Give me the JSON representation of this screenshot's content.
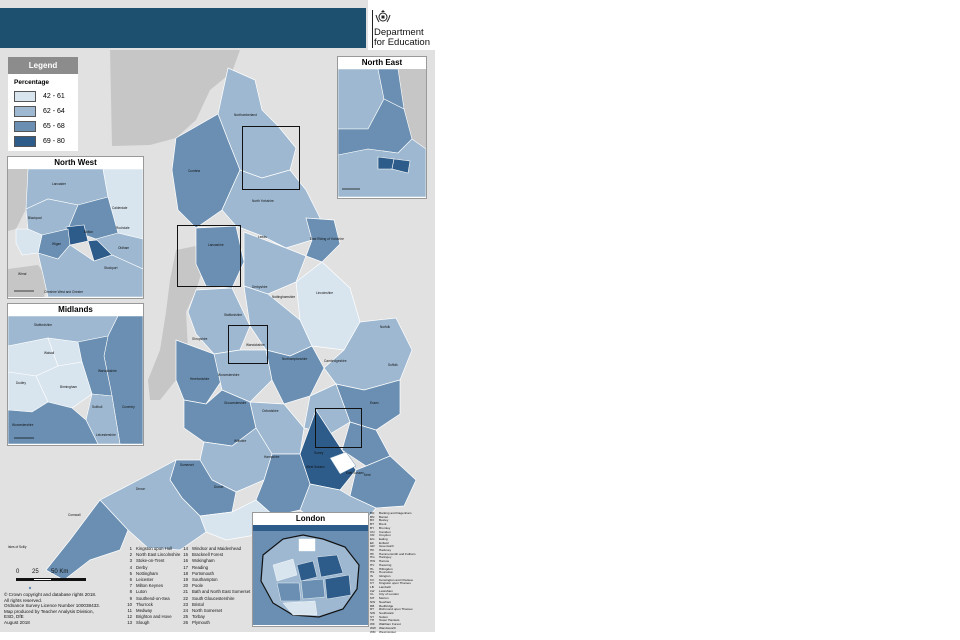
{
  "header": {
    "department_line1": "Department",
    "department_line2": "for Education",
    "crest": "royal-arms-crest"
  },
  "legend": {
    "title": "Legend",
    "subtitle": "Percentage",
    "classes": [
      {
        "label": "42 - 61",
        "color": "#d8e5ef"
      },
      {
        "label": "62 - 64",
        "color": "#9db8d0"
      },
      {
        "label": "65 - 68",
        "color": "#6a8fb2"
      },
      {
        "label": "69 - 80",
        "color": "#2e5c8a"
      }
    ]
  },
  "insets": {
    "north_east": "North East",
    "north_west": "North West",
    "midlands": "Midlands",
    "london": "London"
  },
  "map_labels": {
    "northumberland": "Northumberland",
    "cumbria": "Cumbria",
    "north_yorkshire": "North Yorkshire",
    "east_riding": "East Riding of Yorkshire",
    "leeds": "Leeds",
    "lincolnshire": "Lincolnshire",
    "norfolk": "Norfolk",
    "suffolk": "Suffolk",
    "essex": "Essex",
    "kent": "Kent",
    "east_sussex": "East Sussex",
    "west_sussex": "West Sussex",
    "surrey": "Surrey",
    "hampshire": "Hampshire",
    "dorset": "Dorset",
    "devon": "Devon",
    "cornwall": "Cornwall",
    "somerset": "Somerset",
    "wiltshire": "Wiltshire",
    "gloucestershire": "Gloucestershire",
    "oxfordshire": "Oxfordshire",
    "northamptonshire": "Northamptonshire",
    "cambridgeshire": "Cambridgeshire",
    "derbyshire": "Derbyshire",
    "nottinghamshire": "Nottinghamshire",
    "staffordshire": "Staffordshire",
    "shropshire": "Shropshire",
    "herefordshire": "Herefordshire",
    "worcestershire": "Worcestershire",
    "warwickshire": "Warwickshire",
    "lancashire": "Lancashire",
    "isles_of_scilly": "Isles of Scilly",
    "lancaster": "Lancaster",
    "blackpool": "Blackpool",
    "wirral": "Wirral",
    "cheshire_west": "Cheshire West and Chester",
    "calderdale": "Calderdale",
    "rochdale": "Rochdale",
    "oldham": "Oldham",
    "bolton": "Bolton",
    "wigan": "Wigan",
    "stockport": "Stockport",
    "walsall": "Walsall",
    "dudley": "Dudley",
    "birmingham": "Birmingham",
    "coventry": "Coventry",
    "solihull": "Solihull",
    "warwickshire_mid": "Warwickshire",
    "worcestershire_mid": "Worcestershire",
    "staffordshire_mid": "Staffordshire",
    "leicestershire_mid": "Leicestershire"
  },
  "scale": {
    "ticks": [
      "0",
      "25",
      "50 Km"
    ]
  },
  "copyright": [
    "© Crown copyright and database rights 2018.",
    "All rights reserved.",
    "Ordnance Survey Licence Number 100038433.",
    "Map produced by Teacher Analysis Division,",
    "ESD, DfE",
    "August 2018"
  ],
  "keys_left": [
    {
      "n": "1",
      "name": "Kingston upon Hull"
    },
    {
      "n": "2",
      "name": "North East Lincolnshire"
    },
    {
      "n": "3",
      "name": "Stoke-on-Trent"
    },
    {
      "n": "4",
      "name": "Derby"
    },
    {
      "n": "5",
      "name": "Nottingham"
    },
    {
      "n": "6",
      "name": "Leicester"
    },
    {
      "n": "7",
      "name": "Milton Keynes"
    },
    {
      "n": "8",
      "name": "Luton"
    },
    {
      "n": "9",
      "name": "Southend-on-Sea"
    },
    {
      "n": "10",
      "name": "Thurrock"
    },
    {
      "n": "11",
      "name": "Medway"
    },
    {
      "n": "12",
      "name": "Brighton and Hove"
    },
    {
      "n": "13",
      "name": "Slough"
    }
  ],
  "keys_right": [
    {
      "n": "14",
      "name": "Windsor and Maidenhead"
    },
    {
      "n": "15",
      "name": "Bracknell Forest"
    },
    {
      "n": "16",
      "name": "Wokingham"
    },
    {
      "n": "17",
      "name": "Reading"
    },
    {
      "n": "18",
      "name": "Portsmouth"
    },
    {
      "n": "19",
      "name": "Southampton"
    },
    {
      "n": "20",
      "name": "Poole"
    },
    {
      "n": "21",
      "name": "Bath and North East Somerset"
    },
    {
      "n": "22",
      "name": "South Gloucestershire"
    },
    {
      "n": "23",
      "name": "Bristol"
    },
    {
      "n": "24",
      "name": "North Somerset"
    },
    {
      "n": "25",
      "name": "Torbay"
    },
    {
      "n": "26",
      "name": "Plymouth"
    }
  ],
  "london_keys": [
    {
      "n": "BD",
      "name": "Barking and Dagenham"
    },
    {
      "n": "BN",
      "name": "Barnet"
    },
    {
      "n": "BX",
      "name": "Bexley"
    },
    {
      "n": "BT",
      "name": "Brent"
    },
    {
      "n": "BY",
      "name": "Bromley"
    },
    {
      "n": "CN",
      "name": "Camden"
    },
    {
      "n": "CR",
      "name": "Croydon"
    },
    {
      "n": "EG",
      "name": "Ealing"
    },
    {
      "n": "EF",
      "name": "Enfield"
    },
    {
      "n": "GR",
      "name": "Greenwich"
    },
    {
      "n": "HK",
      "name": "Hackney"
    },
    {
      "n": "HF",
      "name": "Hammersmith and Fulham"
    },
    {
      "n": "HG",
      "name": "Haringey"
    },
    {
      "n": "HW",
      "name": "Harrow"
    },
    {
      "n": "HV",
      "name": "Havering"
    },
    {
      "n": "HL",
      "name": "Hillingdon"
    },
    {
      "n": "HS",
      "name": "Hounslow"
    },
    {
      "n": "IS",
      "name": "Islington"
    },
    {
      "n": "KC",
      "name": "Kensington and Chelsea"
    },
    {
      "n": "KT",
      "name": "Kingston upon Thames"
    },
    {
      "n": "LB",
      "name": "Lambeth"
    },
    {
      "n": "LW",
      "name": "Lewisham"
    },
    {
      "n": "CL",
      "name": "City of London"
    },
    {
      "n": "MT",
      "name": "Merton"
    },
    {
      "n": "NW",
      "name": "Newham"
    },
    {
      "n": "RB",
      "name": "Redbridge"
    },
    {
      "n": "RT",
      "name": "Richmond upon Thames"
    },
    {
      "n": "SW",
      "name": "Southwark"
    },
    {
      "n": "ST",
      "name": "Sutton"
    },
    {
      "n": "TH",
      "name": "Tower Hamlets"
    },
    {
      "n": "WF",
      "name": "Waltham Forest"
    },
    {
      "n": "WW",
      "name": "Wandsworth"
    },
    {
      "n": "WM",
      "name": "Westminster"
    }
  ]
}
